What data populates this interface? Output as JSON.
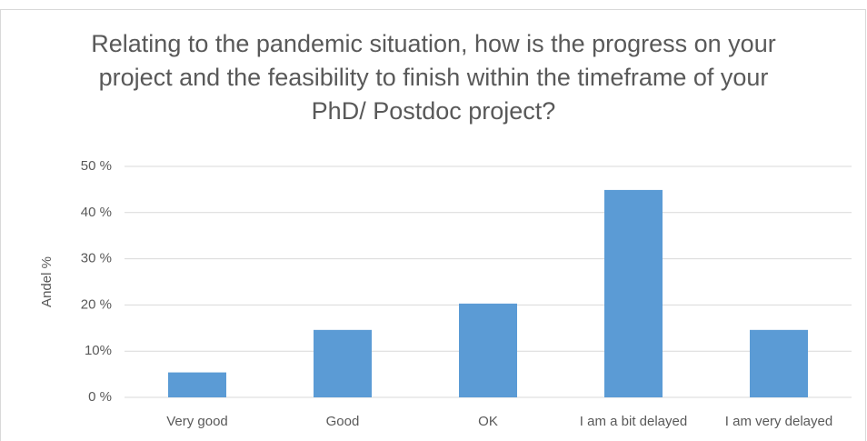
{
  "chart_data": {
    "type": "bar",
    "title": "Relating to the pandemic situation, how is the progress on your project and the feasibility to finish within the timeframe of your PhD/ Postdoc project?",
    "y_label": "Andel %",
    "categories": [
      "Very good",
      "Good",
      "OK",
      "I am a bit delayed",
      "I am very delayed"
    ],
    "values": [
      5.4,
      14.6,
      20.3,
      44.9,
      14.6
    ],
    "color": "#5b9bd5",
    "ylim": [
      0,
      50
    ],
    "yticks": [
      {
        "value": 0,
        "label": "0 %"
      },
      {
        "value": 10,
        "label": "10%"
      },
      {
        "value": 20,
        "label": "20 %"
      },
      {
        "value": 30,
        "label": "30 %"
      },
      {
        "value": 40,
        "label": "40 %"
      },
      {
        "value": 50,
        "label": "50 %"
      }
    ],
    "grid": true
  }
}
